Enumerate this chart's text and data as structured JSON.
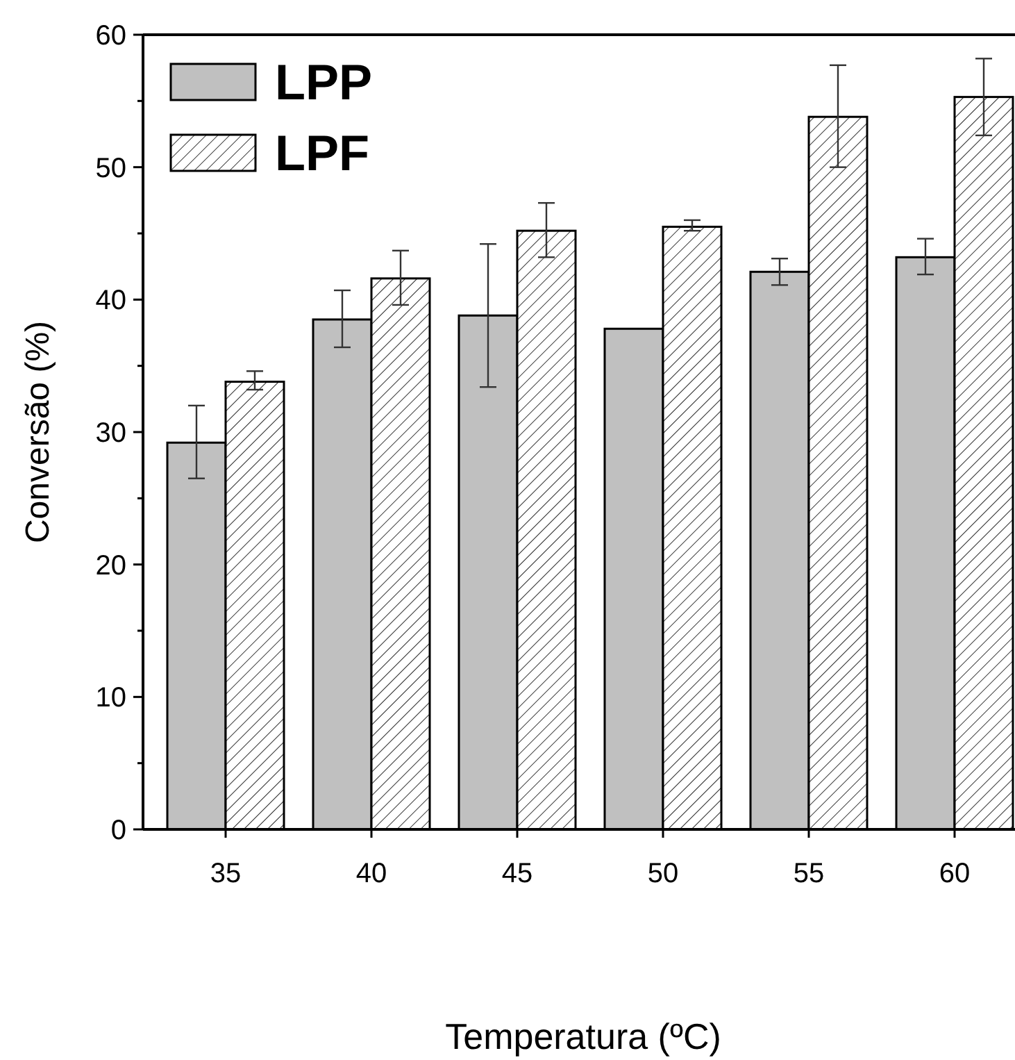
{
  "chart_data": {
    "type": "bar",
    "xlabel": "Temperatura (ºC)",
    "ylabel": "Conversão (%)",
    "categories": [
      "35",
      "40",
      "45",
      "50",
      "55",
      "60"
    ],
    "series": [
      {
        "name": "LPP",
        "color": "#c0c0c0",
        "values": [
          29.2,
          38.5,
          38.8,
          37.8,
          42.1,
          43.2
        ],
        "errors": [
          [
            26.5,
            32
          ],
          [
            36.4,
            40.7
          ],
          [
            33.4,
            44.2
          ],
          null,
          [
            41.1,
            43.1
          ],
          [
            41.9,
            44.6
          ]
        ]
      },
      {
        "name": "LPF",
        "color": "#000000",
        "values": [
          33.8,
          41.6,
          45.2,
          45.5,
          53.8,
          55.3
        ],
        "errors": [
          [
            33.2,
            34.6
          ],
          [
            39.6,
            43.7
          ],
          [
            43.2,
            47.3
          ],
          [
            45.2,
            46
          ],
          [
            50,
            57.7
          ],
          [
            52.4,
            58.2
          ]
        ]
      }
    ],
    "ylim": [
      0,
      60
    ],
    "yticks": [
      0,
      {
        "value": 5,
        "label": null
      },
      10,
      {
        "value": 15,
        "label": null
      },
      20,
      {
        "value": 25,
        "label": null
      },
      30,
      {
        "value": 35,
        "label": null
      },
      40,
      {
        "value": 45,
        "label": null
      },
      50,
      {
        "value": 55,
        "label": null
      },
      60
    ],
    "grid": false,
    "legend": "top left"
  }
}
